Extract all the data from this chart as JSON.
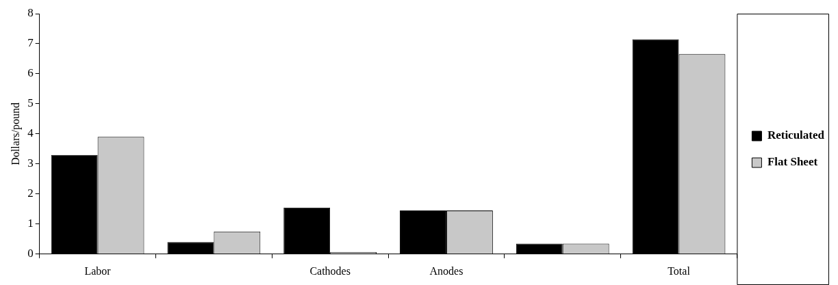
{
  "chart_data": {
    "type": "bar",
    "ylabel": "Dollars/pound",
    "categories": [
      "Labor",
      null,
      "Cathodes",
      "Anodes",
      null,
      "Total"
    ],
    "series": [
      {
        "name": "Reticulated",
        "color": "#000000",
        "values": [
          3.3,
          0.4,
          1.55,
          1.45,
          0.35,
          7.15
        ]
      },
      {
        "name": "Flat Sheet",
        "color": "#c8c8c8",
        "values": [
          3.9,
          0.75,
          0.07,
          1.45,
          0.35,
          6.65
        ]
      }
    ],
    "ylim": [
      0,
      8
    ],
    "yticks": [
      0,
      1,
      2,
      3,
      4,
      5,
      6,
      7,
      8
    ],
    "grid": false,
    "legend": "right"
  }
}
